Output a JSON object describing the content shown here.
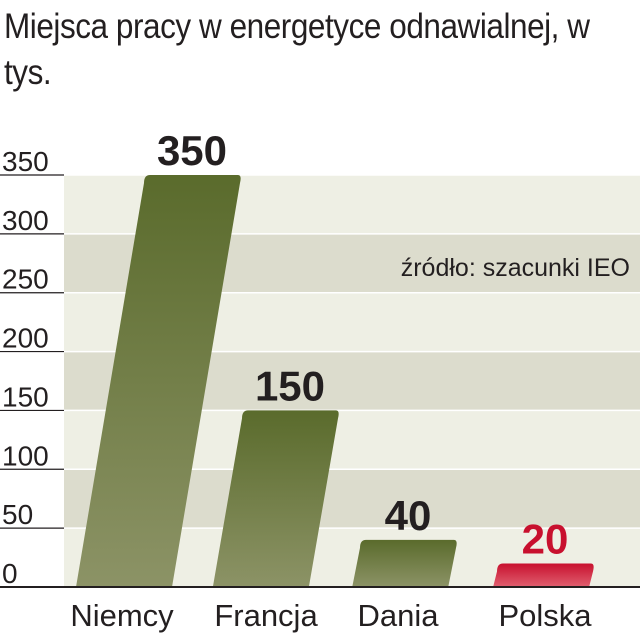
{
  "chart_data": {
    "type": "bar",
    "title": "Miejsca pracy w energetyce odnawialnej, w tys.",
    "source": "źródło: szacunki IEO",
    "categories": [
      "Niemcy",
      "Francja",
      "Dania",
      "Polska"
    ],
    "values": [
      350,
      150,
      40,
      20
    ],
    "value_labels": [
      "350",
      "150",
      "40",
      "20"
    ],
    "ylim": [
      0,
      350
    ],
    "yticks": [
      0,
      50,
      100,
      150,
      200,
      250,
      300,
      350
    ],
    "ytick_labels": [
      "0",
      "50",
      "100",
      "150",
      "200",
      "250",
      "300",
      "350"
    ],
    "grid": "alternating horizontal bands",
    "colors": {
      "bar_top": "#5a6b2c",
      "bar_bottom": "#8c9366",
      "highlight_top": "#c8102e",
      "highlight_bottom": "#e06070",
      "highlight_label": "#c8102e",
      "label": "#231f20",
      "band_light": "#eeefe4",
      "band_dark": "#dcdccd"
    },
    "highlight_category": "Polska"
  }
}
